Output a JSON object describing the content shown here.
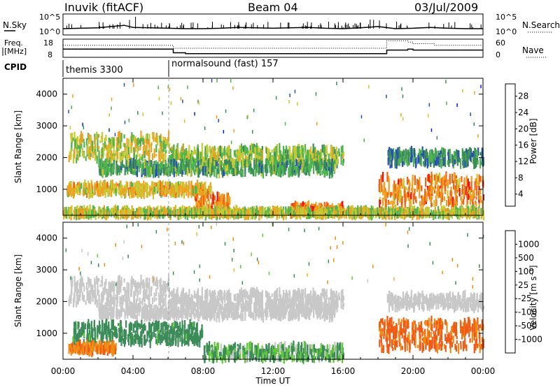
{
  "header": {
    "station": "Inuvik (fitACF)",
    "beam": "Beam 04",
    "date": "03/Jul/2009"
  },
  "noise_panel": {
    "left_label": "N.Sky",
    "left_ticks": [
      "10^5",
      "10^0"
    ],
    "right_ticks": [
      "10^5",
      "10^0"
    ],
    "right_label": "N.Search"
  },
  "freq_panel": {
    "left_label_1": "Freq.",
    "left_label_2": "[MHz]",
    "left_ticks": [
      "18",
      "8"
    ],
    "right_ticks": [
      "60",
      "0"
    ],
    "right_label": "Nave"
  },
  "cpid_panel": {
    "label": "CPID",
    "segments": [
      "themis 3300",
      "normalsound (fast) 157"
    ]
  },
  "power_panel": {
    "ylabel": "Slant Range [km]",
    "yticks": [
      "4000",
      "3000",
      "2000",
      "1000"
    ],
    "colorbar_label": "Power [dB]",
    "colorbar_ticks": [
      "28",
      "24",
      "20",
      "16",
      "12",
      "8",
      "4"
    ],
    "colors": [
      "#0b1ae6",
      "#2850b4",
      "#3c8c5a",
      "#50b450",
      "#c8c832",
      "#f0a020",
      "#f06414",
      "#e61414"
    ]
  },
  "velocity_panel": {
    "ylabel": "Slant Range [km]",
    "yticks": [
      "4000",
      "3000",
      "2000",
      "1000"
    ],
    "colorbar_label": "Velocity [m s⁻¹]",
    "colorbar_ticks": [
      "1000",
      "500",
      "100",
      "25",
      "-25",
      "-100",
      "-500",
      "-1000"
    ],
    "colors": [
      "#1e32c8",
      "#2d7850",
      "#3c8c5a",
      "#64c83c",
      "#c8c8c8",
      "#f0b432",
      "#f08c14",
      "#f05a14",
      "#e61414"
    ]
  },
  "xaxis": {
    "label": "Time UT",
    "ticks": [
      "00:00",
      "04:00",
      "08:00",
      "12:00",
      "16:00",
      "20:00",
      "00:00"
    ]
  },
  "chart_data": [
    {
      "type": "line",
      "title": "N.Sky / N.Search",
      "x": [
        0,
        1,
        2,
        3,
        3.5,
        4,
        5,
        6,
        7,
        8,
        9,
        10,
        11,
        12,
        13,
        14,
        15,
        16,
        17,
        18,
        19,
        20,
        21,
        22,
        23,
        24
      ],
      "series": [
        {
          "name": "N.Sky",
          "values": [
            1.5,
            1.6,
            1.7,
            2.1,
            2.3,
            1.8,
            1.7,
            1.6,
            1.5,
            1.5,
            1.6,
            1.8,
            1.7,
            1.6,
            1.7,
            1.8,
            1.6,
            1.5,
            1.7,
            2.0,
            1.5,
            1.6,
            1.8,
            1.6,
            1.5,
            1.5
          ]
        }
      ],
      "ylim": [
        0,
        5
      ]
    },
    {
      "type": "line",
      "title": "Freq / Nave",
      "x": [
        0,
        6,
        6.3,
        7,
        17,
        18.5,
        19.7,
        20,
        21.2,
        22.5,
        24
      ],
      "series": [
        {
          "name": "Freq.",
          "values": [
            12.5,
            12.5,
            10.5,
            10,
            10,
            12,
            12.5,
            12,
            12,
            12,
            12
          ]
        },
        {
          "name": "Nave",
          "values": [
            40,
            40,
            30,
            30,
            30,
            55,
            50,
            45,
            40,
            40,
            40
          ]
        }
      ],
      "ylim": [
        8,
        18
      ]
    },
    {
      "type": "heatmap",
      "title": "Power [dB]",
      "xlabel": "Time UT",
      "ylabel": "Slant Range [km]",
      "xlim": [
        0,
        24
      ],
      "ylim": [
        180,
        4500
      ],
      "bands": [
        {
          "t0": 0.3,
          "t1": 6.0,
          "r0": 1900,
          "r1": 2700,
          "value": 20
        },
        {
          "t0": 6.0,
          "t1": 16.0,
          "r0": 1800,
          "r1": 2300,
          "value": 18
        },
        {
          "t0": 2.0,
          "t1": 15.5,
          "r0": 1500,
          "r1": 1850,
          "value": 14
        },
        {
          "t0": 0.2,
          "t1": 8.5,
          "r0": 850,
          "r1": 1150,
          "value": 22
        },
        {
          "t0": 7.5,
          "t1": 9.5,
          "r0": 300,
          "r1": 800,
          "value": 26
        },
        {
          "t0": 13.0,
          "t1": 16.0,
          "r0": 200,
          "r1": 500,
          "value": 28
        },
        {
          "t0": 18.0,
          "t1": 24.0,
          "r0": 500,
          "r1": 1400,
          "value": 26
        },
        {
          "t0": 18.5,
          "t1": 24.0,
          "r0": 1800,
          "r1": 2200,
          "value": 12
        },
        {
          "t0": 0.0,
          "t1": 24.0,
          "r0": 180,
          "r1": 350,
          "value": 20
        }
      ]
    },
    {
      "type": "heatmap",
      "title": "Velocity [m s-1]",
      "xlabel": "Time UT",
      "ylabel": "Slant Range [km]",
      "xlim": [
        0,
        24
      ],
      "ylim": [
        180,
        4500
      ],
      "bands": [
        {
          "t0": 0.3,
          "t1": 6.0,
          "r0": 1900,
          "r1": 2700,
          "value": 0
        },
        {
          "t0": 6.0,
          "t1": 16.0,
          "r0": 1800,
          "r1": 2300,
          "value": 0
        },
        {
          "t0": 2.0,
          "t1": 15.5,
          "r0": 1500,
          "r1": 1850,
          "value": 0
        },
        {
          "t0": 0.5,
          "t1": 8.0,
          "r0": 700,
          "r1": 1300,
          "value": 150
        },
        {
          "t0": 0.3,
          "t1": 3.0,
          "r0": 400,
          "r1": 650,
          "value": -250
        },
        {
          "t0": 8.0,
          "t1": 16.0,
          "r0": 180,
          "r1": 600,
          "value": 60
        },
        {
          "t0": 18.0,
          "t1": 24.0,
          "r0": 500,
          "r1": 1400,
          "value": -400
        },
        {
          "t0": 18.5,
          "t1": 24.0,
          "r0": 1800,
          "r1": 2200,
          "value": 0
        }
      ]
    }
  ]
}
